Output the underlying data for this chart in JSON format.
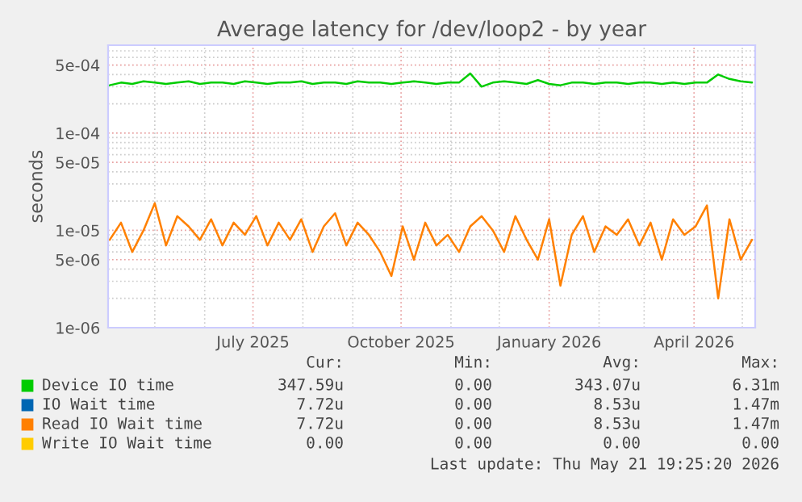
{
  "chart_data": {
    "type": "line",
    "title": "Average latency for /dev/loop2 - by year",
    "ylabel": "seconds",
    "log": true,
    "x": [
      "2025-04-03",
      "2025-04-10",
      "2025-04-17",
      "2025-04-24",
      "2025-05-01",
      "2025-05-08",
      "2025-05-15",
      "2025-05-22",
      "2025-05-29",
      "2025-06-05",
      "2025-06-12",
      "2025-06-19",
      "2025-06-26",
      "2025-07-03",
      "2025-07-10",
      "2025-07-17",
      "2025-07-24",
      "2025-07-31",
      "2025-08-07",
      "2025-08-14",
      "2025-08-21",
      "2025-08-28",
      "2025-09-04",
      "2025-09-11",
      "2025-09-18",
      "2025-09-25",
      "2025-10-02",
      "2025-10-09",
      "2025-10-16",
      "2025-10-23",
      "2025-10-30",
      "2025-11-06",
      "2025-11-13",
      "2025-11-20",
      "2025-11-27",
      "2025-12-04",
      "2025-12-11",
      "2025-12-18",
      "2025-12-25",
      "2026-01-01",
      "2026-01-08",
      "2026-01-15",
      "2026-01-22",
      "2026-01-29",
      "2026-02-05",
      "2026-02-12",
      "2026-02-19",
      "2026-02-26",
      "2026-03-05",
      "2026-03-12",
      "2026-03-19",
      "2026-03-26",
      "2026-04-02",
      "2026-04-09",
      "2026-04-16",
      "2026-04-23",
      "2026-04-30",
      "2026-05-07"
    ],
    "series": [
      {
        "name": "Device IO time",
        "color": "#00cc00",
        "values": [
          0.00031,
          0.00033,
          0.00032,
          0.00034,
          0.00033,
          0.00032,
          0.00033,
          0.00034,
          0.00032,
          0.00033,
          0.00033,
          0.00032,
          0.00034,
          0.00033,
          0.00032,
          0.00033,
          0.00033,
          0.00034,
          0.00032,
          0.00033,
          0.00033,
          0.00032,
          0.00034,
          0.00033,
          0.00033,
          0.00032,
          0.00033,
          0.00034,
          0.00033,
          0.00032,
          0.00033,
          0.00033,
          0.00041,
          0.0003,
          0.00033,
          0.00034,
          0.00033,
          0.00032,
          0.00035,
          0.00032,
          0.00031,
          0.00033,
          0.00033,
          0.00032,
          0.00033,
          0.00033,
          0.00032,
          0.00033,
          0.00033,
          0.00032,
          0.00033,
          0.00032,
          0.00033,
          0.00033,
          0.0004,
          0.00036,
          0.00034,
          0.00033
        ]
      },
      {
        "name": "IO Wait time",
        "color": "#0066b3",
        "values": [
          null,
          null,
          null,
          null,
          null,
          null,
          null,
          null,
          null,
          null,
          null,
          null,
          null,
          null,
          null,
          null,
          null,
          null,
          null,
          null,
          null,
          null,
          null,
          null,
          null,
          null,
          null,
          null,
          null,
          null,
          null,
          null,
          null,
          null,
          null,
          null,
          null,
          null,
          null,
          null,
          null,
          null,
          null,
          null,
          null,
          null,
          null,
          null,
          null,
          null,
          null,
          null,
          null,
          null,
          null,
          null,
          null,
          null
        ]
      },
      {
        "name": "Read IO Wait time",
        "color": "#ff8000",
        "values": [
          8e-06,
          1.2e-05,
          6e-06,
          1e-05,
          1.9e-05,
          7e-06,
          1.4e-05,
          1.1e-05,
          8e-06,
          1.3e-05,
          7e-06,
          1.2e-05,
          9e-06,
          1.4e-05,
          7e-06,
          1.2e-05,
          8e-06,
          1.3e-05,
          6e-06,
          1.1e-05,
          1.5e-05,
          7e-06,
          1.2e-05,
          9e-06,
          6e-06,
          3.4e-06,
          1.1e-05,
          5e-06,
          1.2e-05,
          7e-06,
          9e-06,
          6e-06,
          1.1e-05,
          1.4e-05,
          1e-05,
          6e-06,
          1.4e-05,
          8e-06,
          5e-06,
          1.3e-05,
          2.7e-06,
          9e-06,
          1.4e-05,
          6e-06,
          1.1e-05,
          9e-06,
          1.3e-05,
          7e-06,
          1.2e-05,
          5e-06,
          1.3e-05,
          9e-06,
          1.1e-05,
          1.8e-05,
          2e-06,
          1.3e-05,
          5e-06,
          8e-06
        ]
      },
      {
        "name": "Write IO Wait time",
        "color": "#ffcc00",
        "values": [
          null,
          null,
          null,
          null,
          null,
          null,
          null,
          null,
          null,
          null,
          null,
          null,
          null,
          null,
          null,
          null,
          null,
          null,
          null,
          null,
          null,
          null,
          null,
          null,
          null,
          null,
          null,
          null,
          null,
          null,
          null,
          null,
          null,
          null,
          null,
          null,
          null,
          null,
          null,
          null,
          null,
          null,
          null,
          null,
          null,
          null,
          null,
          null,
          null,
          null,
          null,
          null,
          null,
          null,
          null,
          null,
          null,
          null
        ]
      }
    ],
    "xlim": [
      "2025-04-02",
      "2026-05-09"
    ],
    "xticks": [
      {
        "value": "2025-05-01",
        "label": null
      },
      {
        "value": "2025-06-01",
        "label": null
      },
      {
        "value": "2025-07-01",
        "label": "July 2025"
      },
      {
        "value": "2025-08-01",
        "label": null
      },
      {
        "value": "2025-09-01",
        "label": null
      },
      {
        "value": "2025-10-01",
        "label": "October 2025"
      },
      {
        "value": "2025-11-01",
        "label": null
      },
      {
        "value": "2025-12-01",
        "label": null
      },
      {
        "value": "2026-01-01",
        "label": "January 2026"
      },
      {
        "value": "2026-02-01",
        "label": null
      },
      {
        "value": "2026-03-01",
        "label": null
      },
      {
        "value": "2026-04-01",
        "label": "April 2026"
      },
      {
        "value": "2026-05-01",
        "label": null
      }
    ],
    "ylim": [
      1e-06,
      0.0008
    ],
    "yticks": [
      {
        "value": 1e-06,
        "label": "1e-06"
      },
      {
        "value": 5e-06,
        "label": "5e-06"
      },
      {
        "value": 1e-05,
        "label": "1e-05"
      },
      {
        "value": 5e-05,
        "label": "5e-05"
      },
      {
        "value": 0.0001,
        "label": "1e-04"
      },
      {
        "value": 0.0005,
        "label": "5e-04"
      }
    ],
    "grid": true,
    "legend": "bottom",
    "annotations": [
      "Cur:",
      "Min:",
      "Avg:",
      "Max:",
      "347.59u",
      "0.00",
      "343.07u",
      "6.31m",
      "7.72u",
      "0.00",
      "8.53u",
      "1.47m",
      "7.72u",
      "0.00",
      "8.53u",
      "1.47m",
      "0.00",
      "0.00",
      "0.00",
      "0.00",
      "Last update: Thu May 21 19:25:20 2026"
    ]
  }
}
